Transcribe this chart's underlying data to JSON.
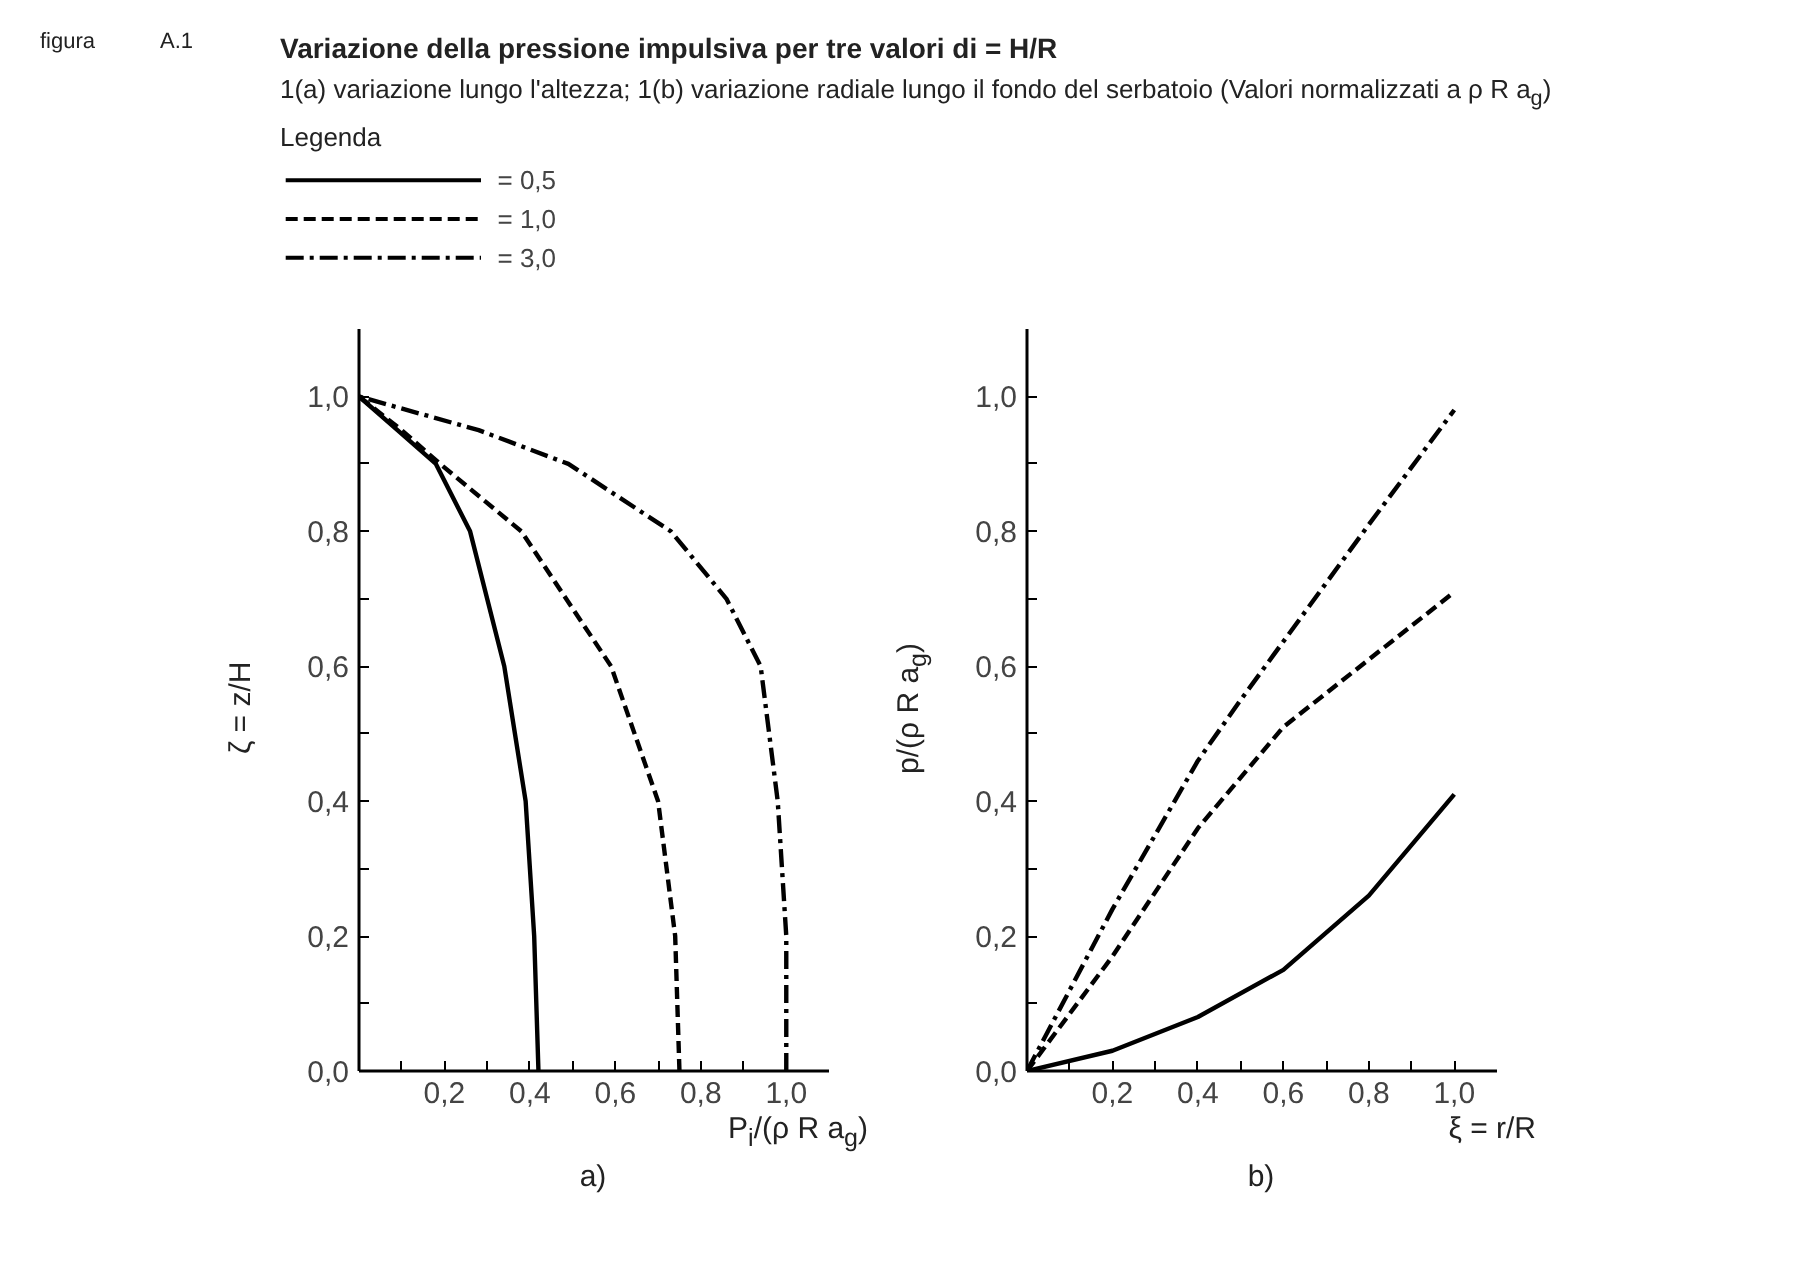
{
  "chart_data": [
    {
      "type": "line",
      "title": "Variazione della pressione impulsiva per tre valori di  = H/R",
      "subtitle": "1(a) variazione lungo l'altezza; 1(b) variazione radiale lungo il fondo del serbatoio (Valori normalizzati a ρ R a$_{g}$)",
      "legend_title": "Legenda",
      "legend": "top",
      "annotations": [
        "figura",
        "A.1",
        "a)"
      ],
      "xlabel": "P$_{i}$/(ρ R a$_{g}$)",
      "ylabel": "ζ = z/H",
      "xlim": [
        0,
        1.1
      ],
      "ylim": [
        0,
        1.1
      ],
      "xticks": [
        {
          "value": 0.1,
          "label": null
        },
        {
          "value": 0.2,
          "label": "0,2"
        },
        {
          "value": 0.3,
          "label": null
        },
        {
          "value": 0.4,
          "label": "0,4"
        },
        {
          "value": 0.5,
          "label": null
        },
        {
          "value": 0.6,
          "label": "0,6"
        },
        {
          "value": 0.7,
          "label": null
        },
        {
          "value": 0.8,
          "label": "0,8"
        },
        {
          "value": 0.9,
          "label": null
        },
        {
          "value": 1.0,
          "label": "1,0"
        }
      ],
      "yticks": [
        {
          "value": 0,
          "label": "0,0"
        },
        {
          "value": 0.1,
          "label": null
        },
        {
          "value": 0.2,
          "label": "0,2"
        },
        {
          "value": 0.3,
          "label": null
        },
        {
          "value": 0.4,
          "label": "0,4"
        },
        {
          "value": 0.5,
          "label": null
        },
        {
          "value": 0.6,
          "label": "0,6"
        },
        {
          "value": 0.7,
          "label": null
        },
        {
          "value": 0.8,
          "label": "0,8"
        },
        {
          "value": 0.9,
          "label": null
        },
        {
          "value": 1.0,
          "label": "1,0"
        }
      ],
      "grid": false,
      "marker": "none",
      "series": [
        {
          "name": "= 0,5",
          "color": "#000000",
          "line_style": "solid",
          "x": [
            0.42,
            0.41,
            0.39,
            0.34,
            0.26,
            0.18,
            0.09,
            0
          ],
          "values": [
            0,
            0.2,
            0.4,
            0.6,
            0.8,
            0.9,
            0.95,
            1.0
          ]
        },
        {
          "name": "= 1,0",
          "color": "#000000",
          "line_style": "dashed",
          "x": [
            0.75,
            0.74,
            0.7,
            0.59,
            0.38,
            0.19,
            0.1,
            0
          ],
          "values": [
            0,
            0.2,
            0.4,
            0.6,
            0.8,
            0.9,
            0.95,
            1.0
          ]
        },
        {
          "name": "= 3,0",
          "color": "#000000",
          "line_style": "dashdot",
          "x": [
            1.0,
            1.0,
            0.98,
            0.94,
            0.86,
            0.73,
            0.49,
            0.28,
            0
          ],
          "values": [
            0,
            0.2,
            0.4,
            0.6,
            0.7,
            0.8,
            0.9,
            0.95,
            1.0
          ]
        }
      ]
    },
    {
      "type": "line",
      "annotations": [
        "b)"
      ],
      "xlabel": "ξ = r/R",
      "ylabel": "p/(ρ R a$_{g}$)",
      "xlim": [
        0,
        1.1
      ],
      "ylim": [
        0,
        1.1
      ],
      "xticks": [
        {
          "value": 0.1,
          "label": null
        },
        {
          "value": 0.2,
          "label": "0,2"
        },
        {
          "value": 0.3,
          "label": null
        },
        {
          "value": 0.4,
          "label": "0,4"
        },
        {
          "value": 0.5,
          "label": null
        },
        {
          "value": 0.6,
          "label": "0,6"
        },
        {
          "value": 0.7,
          "label": null
        },
        {
          "value": 0.8,
          "label": "0,8"
        },
        {
          "value": 0.9,
          "label": null
        },
        {
          "value": 1.0,
          "label": "1,0"
        }
      ],
      "yticks": [
        {
          "value": 0,
          "label": "0,0"
        },
        {
          "value": 0.1,
          "label": null
        },
        {
          "value": 0.2,
          "label": "0,2"
        },
        {
          "value": 0.3,
          "label": null
        },
        {
          "value": 0.4,
          "label": "0,4"
        },
        {
          "value": 0.5,
          "label": null
        },
        {
          "value": 0.6,
          "label": "0,6"
        },
        {
          "value": 0.7,
          "label": null
        },
        {
          "value": 0.8,
          "label": "0,8"
        },
        {
          "value": 0.9,
          "label": null
        },
        {
          "value": 1.0,
          "label": "1,0"
        }
      ],
      "grid": false,
      "marker": "none",
      "series": [
        {
          "color": "#000000",
          "line_style": "solid",
          "x": [
            0,
            0.2,
            0.4,
            0.6,
            0.8,
            1.0
          ],
          "values": [
            0,
            0.03,
            0.08,
            0.15,
            0.26,
            0.41
          ]
        },
        {
          "color": "#000000",
          "line_style": "dashed",
          "x": [
            0,
            0.2,
            0.4,
            0.6,
            0.8,
            1.0
          ],
          "values": [
            0,
            0.17,
            0.36,
            0.51,
            0.61,
            0.71
          ]
        },
        {
          "color": "#000000",
          "line_style": "dashdot",
          "x": [
            0,
            0.2,
            0.4,
            0.5,
            0.8,
            1.0
          ],
          "values": [
            0,
            0.24,
            0.46,
            0.55,
            0.81,
            0.98
          ]
        }
      ]
    }
  ]
}
